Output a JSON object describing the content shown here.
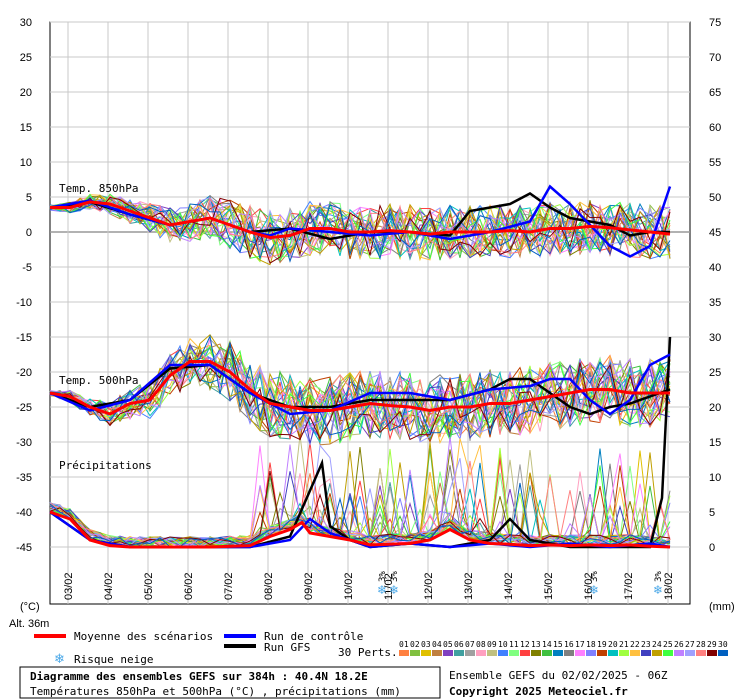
{
  "chart_data": {
    "type": "line",
    "title": "Diagramme des ensembles GEFS sur 384h : 40.4N 18.2E",
    "subtitle": "Températures 850hPa et 500hPa (°C) , précipitations (mm)",
    "run_label": "Ensemble GEFS du 02/02/2025 - 06Z",
    "copyright": "Copyright 2025 Meteociel.fr",
    "left_axis": {
      "unit": "(°C)",
      "ylim": [
        -45,
        30
      ],
      "ticks": [
        30,
        25,
        20,
        15,
        10,
        5,
        0,
        -5,
        -10,
        -15,
        -20,
        -25,
        -30,
        -35,
        -40,
        -45
      ]
    },
    "right_axis": {
      "unit": "(mm)",
      "ylim": [
        0,
        75
      ],
      "ticks": [
        75,
        70,
        65,
        60,
        55,
        50,
        45,
        40,
        35,
        30,
        25,
        20,
        15,
        10,
        5,
        0
      ]
    },
    "x_dates": [
      "03/02",
      "04/02",
      "05/02",
      "06/02",
      "07/02",
      "08/02",
      "09/02",
      "10/02",
      "11/02",
      "12/02",
      "13/02",
      "14/02",
      "15/02",
      "16/02",
      "17/02",
      "18/02"
    ],
    "altitude": "Alt. 36m",
    "panel_labels": {
      "t850": "Temp. 850hPa",
      "t500": "Temp. 500hPa",
      "precip": "Précipitations"
    },
    "snow_risk": [
      {
        "day": 8.0,
        "label": "3%"
      },
      {
        "day": 8.3,
        "label": "3%"
      },
      {
        "day": 13.3,
        "label": "3%"
      },
      {
        "day": 14.9,
        "label": "3%"
      }
    ],
    "legend": {
      "mean": {
        "label": "Moyenne des scénarios",
        "color": "#ff0000"
      },
      "control": {
        "label": "Run de contrôle",
        "color": "#0000ff"
      },
      "gfs": {
        "label": "Run GFS",
        "color": "#000000"
      },
      "snow": {
        "label": "Risque neige",
        "color": "#4aa8e8"
      },
      "perts_label": "30 Perts.",
      "pert_numbers": [
        "01",
        "02",
        "03",
        "04",
        "05",
        "06",
        "07",
        "08",
        "09",
        "10",
        "11",
        "12",
        "13",
        "14",
        "15",
        "16",
        "17",
        "18",
        "19",
        "20",
        "21",
        "22",
        "23",
        "24",
        "25",
        "26",
        "27",
        "28",
        "29",
        "30"
      ],
      "pert_colors": [
        "#ff8040",
        "#80c040",
        "#e0c000",
        "#c08040",
        "#8040c0",
        "#40a0a0",
        "#a0a0a0",
        "#ffa0c0",
        "#c0c080",
        "#4080ff",
        "#80ff80",
        "#ff4040",
        "#808000",
        "#40c040",
        "#0080c0",
        "#808080",
        "#ff80ff",
        "#8080ff",
        "#c04000",
        "#00c0c0",
        "#a0ff40",
        "#ffc040",
        "#4040c0",
        "#c0a000",
        "#40ff40",
        "#c080ff",
        "#a0a0ff",
        "#ff8080",
        "#800000",
        "#0060c0"
      ]
    },
    "series": [
      {
        "name": "Moyenne des scénarios",
        "color": "#ff0000",
        "t850": [
          [
            0,
            3.5
          ],
          [
            0.5,
            3.5
          ],
          [
            1,
            4.3
          ],
          [
            1.5,
            4
          ],
          [
            2,
            3
          ],
          [
            2.5,
            2
          ],
          [
            3,
            1
          ],
          [
            3.5,
            1.5
          ],
          [
            4,
            2
          ],
          [
            4.5,
            1
          ],
          [
            5,
            0
          ],
          [
            5.5,
            -0.8
          ],
          [
            6,
            -0.5
          ],
          [
            6.5,
            0.5
          ],
          [
            7,
            0.5
          ],
          [
            7.5,
            0
          ],
          [
            8,
            0
          ],
          [
            8.5,
            0.2
          ],
          [
            9,
            0
          ],
          [
            9.5,
            -0.3
          ],
          [
            10,
            0
          ],
          [
            10.5,
            0
          ],
          [
            11,
            0
          ],
          [
            11.5,
            0.2
          ],
          [
            12,
            0
          ],
          [
            12.5,
            0.5
          ],
          [
            13,
            0.5
          ],
          [
            13.5,
            0.8
          ],
          [
            14,
            0.6
          ],
          [
            14.5,
            0.3
          ],
          [
            15,
            0
          ],
          [
            15.5,
            -0.3
          ]
        ],
        "t500": [
          [
            0,
            -23
          ],
          [
            0.5,
            -23.5
          ],
          [
            1,
            -25
          ],
          [
            1.5,
            -26
          ],
          [
            2,
            -24.5
          ],
          [
            2.5,
            -24
          ],
          [
            3,
            -20.5
          ],
          [
            3.5,
            -18.5
          ],
          [
            4,
            -18.5
          ],
          [
            4.5,
            -20
          ],
          [
            5,
            -22.5
          ],
          [
            5.5,
            -24.5
          ],
          [
            6,
            -25
          ],
          [
            6.5,
            -25.5
          ],
          [
            7,
            -25.5
          ],
          [
            7.5,
            -25
          ],
          [
            8,
            -24.5
          ],
          [
            8.5,
            -24.8
          ],
          [
            9,
            -25
          ],
          [
            9.5,
            -25.5
          ],
          [
            10,
            -25
          ],
          [
            10.5,
            -25
          ],
          [
            11,
            -24.5
          ],
          [
            11.5,
            -24.5
          ],
          [
            12,
            -24
          ],
          [
            12.5,
            -23.5
          ],
          [
            13,
            -23
          ],
          [
            13.5,
            -22.5
          ],
          [
            14,
            -22.5
          ],
          [
            14.5,
            -23
          ],
          [
            15,
            -23
          ],
          [
            15.5,
            -23
          ]
        ],
        "precip": [
          [
            0,
            5
          ],
          [
            0.5,
            4
          ],
          [
            1,
            1
          ],
          [
            1.5,
            0.2
          ],
          [
            2,
            0
          ],
          [
            3,
            0
          ],
          [
            4,
            0
          ],
          [
            5,
            0.2
          ],
          [
            5.5,
            1.5
          ],
          [
            6,
            2.5
          ],
          [
            6.3,
            3.5
          ],
          [
            6.5,
            2
          ],
          [
            7,
            1.5
          ],
          [
            7.5,
            1
          ],
          [
            8,
            0.3
          ],
          [
            9,
            0.5
          ],
          [
            9.5,
            1
          ],
          [
            10,
            2.5
          ],
          [
            10.5,
            1
          ],
          [
            11,
            0.5
          ],
          [
            11.5,
            0.4
          ],
          [
            12,
            0.2
          ],
          [
            12.5,
            0.3
          ],
          [
            13,
            0.2
          ],
          [
            13.5,
            0.3
          ],
          [
            14,
            0.2
          ],
          [
            14.5,
            0.3
          ],
          [
            15,
            0.1
          ],
          [
            15.5,
            0
          ]
        ]
      },
      {
        "name": "Run de contrôle",
        "color": "#0000ff",
        "t850": [
          [
            0,
            3.5
          ],
          [
            1,
            4.5
          ],
          [
            2,
            2.5
          ],
          [
            3,
            1
          ],
          [
            4,
            2
          ],
          [
            5,
            0
          ],
          [
            5.5,
            -0.5
          ],
          [
            6,
            0.5
          ],
          [
            7,
            0
          ],
          [
            8,
            -0.5
          ],
          [
            9,
            0
          ],
          [
            10,
            -1
          ],
          [
            11,
            0
          ],
          [
            12,
            1.5
          ],
          [
            12.5,
            6.5
          ],
          [
            13,
            4
          ],
          [
            13.5,
            1
          ],
          [
            14,
            -2
          ],
          [
            14.5,
            -3.5
          ],
          [
            15,
            -2
          ],
          [
            15.5,
            6.5
          ]
        ],
        "t500": [
          [
            0,
            -23
          ],
          [
            1,
            -25.5
          ],
          [
            2,
            -24
          ],
          [
            3,
            -19
          ],
          [
            4,
            -19
          ],
          [
            5,
            -23
          ],
          [
            6,
            -26
          ],
          [
            7,
            -25.5
          ],
          [
            8,
            -23
          ],
          [
            9,
            -23
          ],
          [
            10,
            -24
          ],
          [
            11,
            -22.5
          ],
          [
            12,
            -22
          ],
          [
            12.5,
            -21
          ],
          [
            13,
            -21
          ],
          [
            13.5,
            -24
          ],
          [
            14,
            -26
          ],
          [
            14.5,
            -24
          ],
          [
            15,
            -19
          ],
          [
            15.5,
            -17.5
          ]
        ],
        "precip": [
          [
            0,
            5
          ],
          [
            1,
            1
          ],
          [
            2,
            0
          ],
          [
            5,
            0
          ],
          [
            6,
            1
          ],
          [
            6.5,
            4
          ],
          [
            7,
            2
          ],
          [
            8,
            0
          ],
          [
            9,
            0.5
          ],
          [
            10,
            0
          ],
          [
            11,
            0.5
          ],
          [
            12,
            0
          ],
          [
            13,
            0.5
          ],
          [
            14,
            0
          ],
          [
            15,
            0.5
          ],
          [
            15.5,
            0
          ]
        ]
      },
      {
        "name": "Run GFS",
        "color": "#000000",
        "t850": [
          [
            0,
            3.5
          ],
          [
            1,
            4.3
          ],
          [
            2,
            2.5
          ],
          [
            3,
            1
          ],
          [
            4,
            2
          ],
          [
            5,
            0
          ],
          [
            6,
            0.5
          ],
          [
            7,
            -1
          ],
          [
            8,
            0
          ],
          [
            9,
            0
          ],
          [
            10,
            -0.5
          ],
          [
            10.5,
            3
          ],
          [
            11,
            3.5
          ],
          [
            11.5,
            4
          ],
          [
            12,
            5.5
          ],
          [
            12.5,
            3.5
          ],
          [
            13,
            2
          ],
          [
            14,
            1
          ],
          [
            14.5,
            -0.5
          ],
          [
            15,
            0
          ],
          [
            15.5,
            0
          ]
        ],
        "t500": [
          [
            0,
            -23
          ],
          [
            1,
            -25
          ],
          [
            2,
            -24
          ],
          [
            3,
            -19.5
          ],
          [
            4,
            -19
          ],
          [
            5,
            -23
          ],
          [
            6,
            -25
          ],
          [
            7,
            -25
          ],
          [
            8,
            -24
          ],
          [
            9,
            -24
          ],
          [
            10,
            -24
          ],
          [
            11,
            -22.5
          ],
          [
            11.5,
            -21
          ],
          [
            12,
            -21
          ],
          [
            12.5,
            -23
          ],
          [
            13,
            -25
          ],
          [
            13.5,
            -26
          ],
          [
            14,
            -25
          ],
          [
            14.5,
            -24.5
          ],
          [
            15,
            -23.5
          ],
          [
            15.5,
            -22.5
          ]
        ],
        "precip": [
          [
            0,
            5
          ],
          [
            1,
            1
          ],
          [
            2,
            0
          ],
          [
            5,
            0
          ],
          [
            6,
            1.5
          ],
          [
            6.8,
            12
          ],
          [
            7,
            3
          ],
          [
            7.5,
            1
          ],
          [
            8,
            0
          ],
          [
            9,
            0.5
          ],
          [
            10,
            0
          ],
          [
            11,
            1
          ],
          [
            11.5,
            4
          ],
          [
            12,
            1
          ],
          [
            12.5,
            0.5
          ],
          [
            13,
            0
          ],
          [
            14,
            0
          ],
          [
            15,
            0
          ],
          [
            15.3,
            7
          ],
          [
            15.5,
            30
          ]
        ]
      }
    ]
  }
}
